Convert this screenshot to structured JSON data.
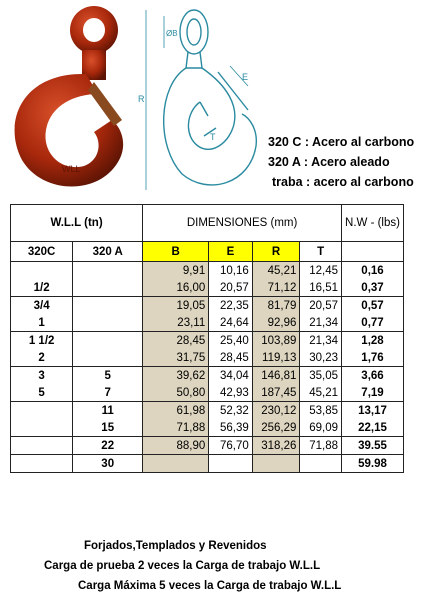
{
  "materials": [
    "320 C : Acero al carbono",
    "320 A : Acero aleado",
    "traba : acero al carbono"
  ],
  "drawing_labels": {
    "b": "ØB",
    "r": "R",
    "e": "E",
    "t": "T"
  },
  "photo_text": "WLL",
  "table": {
    "h_wll": "W.L.L    (tn)",
    "h_dim": "DIMENSIONES        (mm)",
    "h_nw": "N.W - (lbs)",
    "h_320c": "320C",
    "h_320a": "320 A",
    "h_b": "B",
    "h_e": "E",
    "h_r": "R",
    "h_t": "T",
    "rows": [
      {
        "c": "",
        "a": "",
        "b": "9,91",
        "e": "10,16",
        "r": "45,21",
        "t": "12,45",
        "nw": "0,16"
      },
      {
        "c": "1/2",
        "a": "",
        "b": "16,00",
        "e": "20,57",
        "r": "71,12",
        "t": "16,51",
        "nw": "0,37"
      },
      {
        "c": "3/4",
        "a": "",
        "b": "19,05",
        "e": "22,35",
        "r": "81,79",
        "t": "20,57",
        "nw": "0,57"
      },
      {
        "c": "1",
        "a": "",
        "b": "23,11",
        "e": "24,64",
        "r": "92,96",
        "t": "21,34",
        "nw": "0,77"
      },
      {
        "c": "1  1/2",
        "a": "",
        "b": "28,45",
        "e": "25,40",
        "r": "103,89",
        "t": "21,34",
        "nw": "1,28"
      },
      {
        "c": "2",
        "a": "",
        "b": "31,75",
        "e": "28,45",
        "r": "119,13",
        "t": "30,23",
        "nw": "1,76"
      },
      {
        "c": "3",
        "a": "5",
        "b": "39,62",
        "e": "34,04",
        "r": "146,81",
        "t": "35,05",
        "nw": "3,66"
      },
      {
        "c": "5",
        "a": "7",
        "b": "50,80",
        "e": "42,93",
        "r": "187,45",
        "t": "45,21",
        "nw": "7,19"
      },
      {
        "c": "",
        "a": "11",
        "b": "61,98",
        "e": "52,32",
        "r": "230,12",
        "t": "53,85",
        "nw": "13,17"
      },
      {
        "c": "",
        "a": "15",
        "b": "71,88",
        "e": "56,39",
        "r": "256,29",
        "t": "69,09",
        "nw": "22,15"
      },
      {
        "c": "",
        "a": "22",
        "b": "88,90",
        "e": "76,70",
        "r": "318,26",
        "t": "71,88",
        "nw": "39.55"
      },
      {
        "c": "",
        "a": "30",
        "b": "",
        "e": "",
        "r": "",
        "t": "",
        "nw": "59.98"
      }
    ]
  },
  "footer": [
    "Forjados,Templados y Revenidos",
    "Carga de prueba 2 veces la Carga de trabajo W.L.L",
    "Carga Máxima 5 veces la Carga de trabajo W.L.L"
  ]
}
